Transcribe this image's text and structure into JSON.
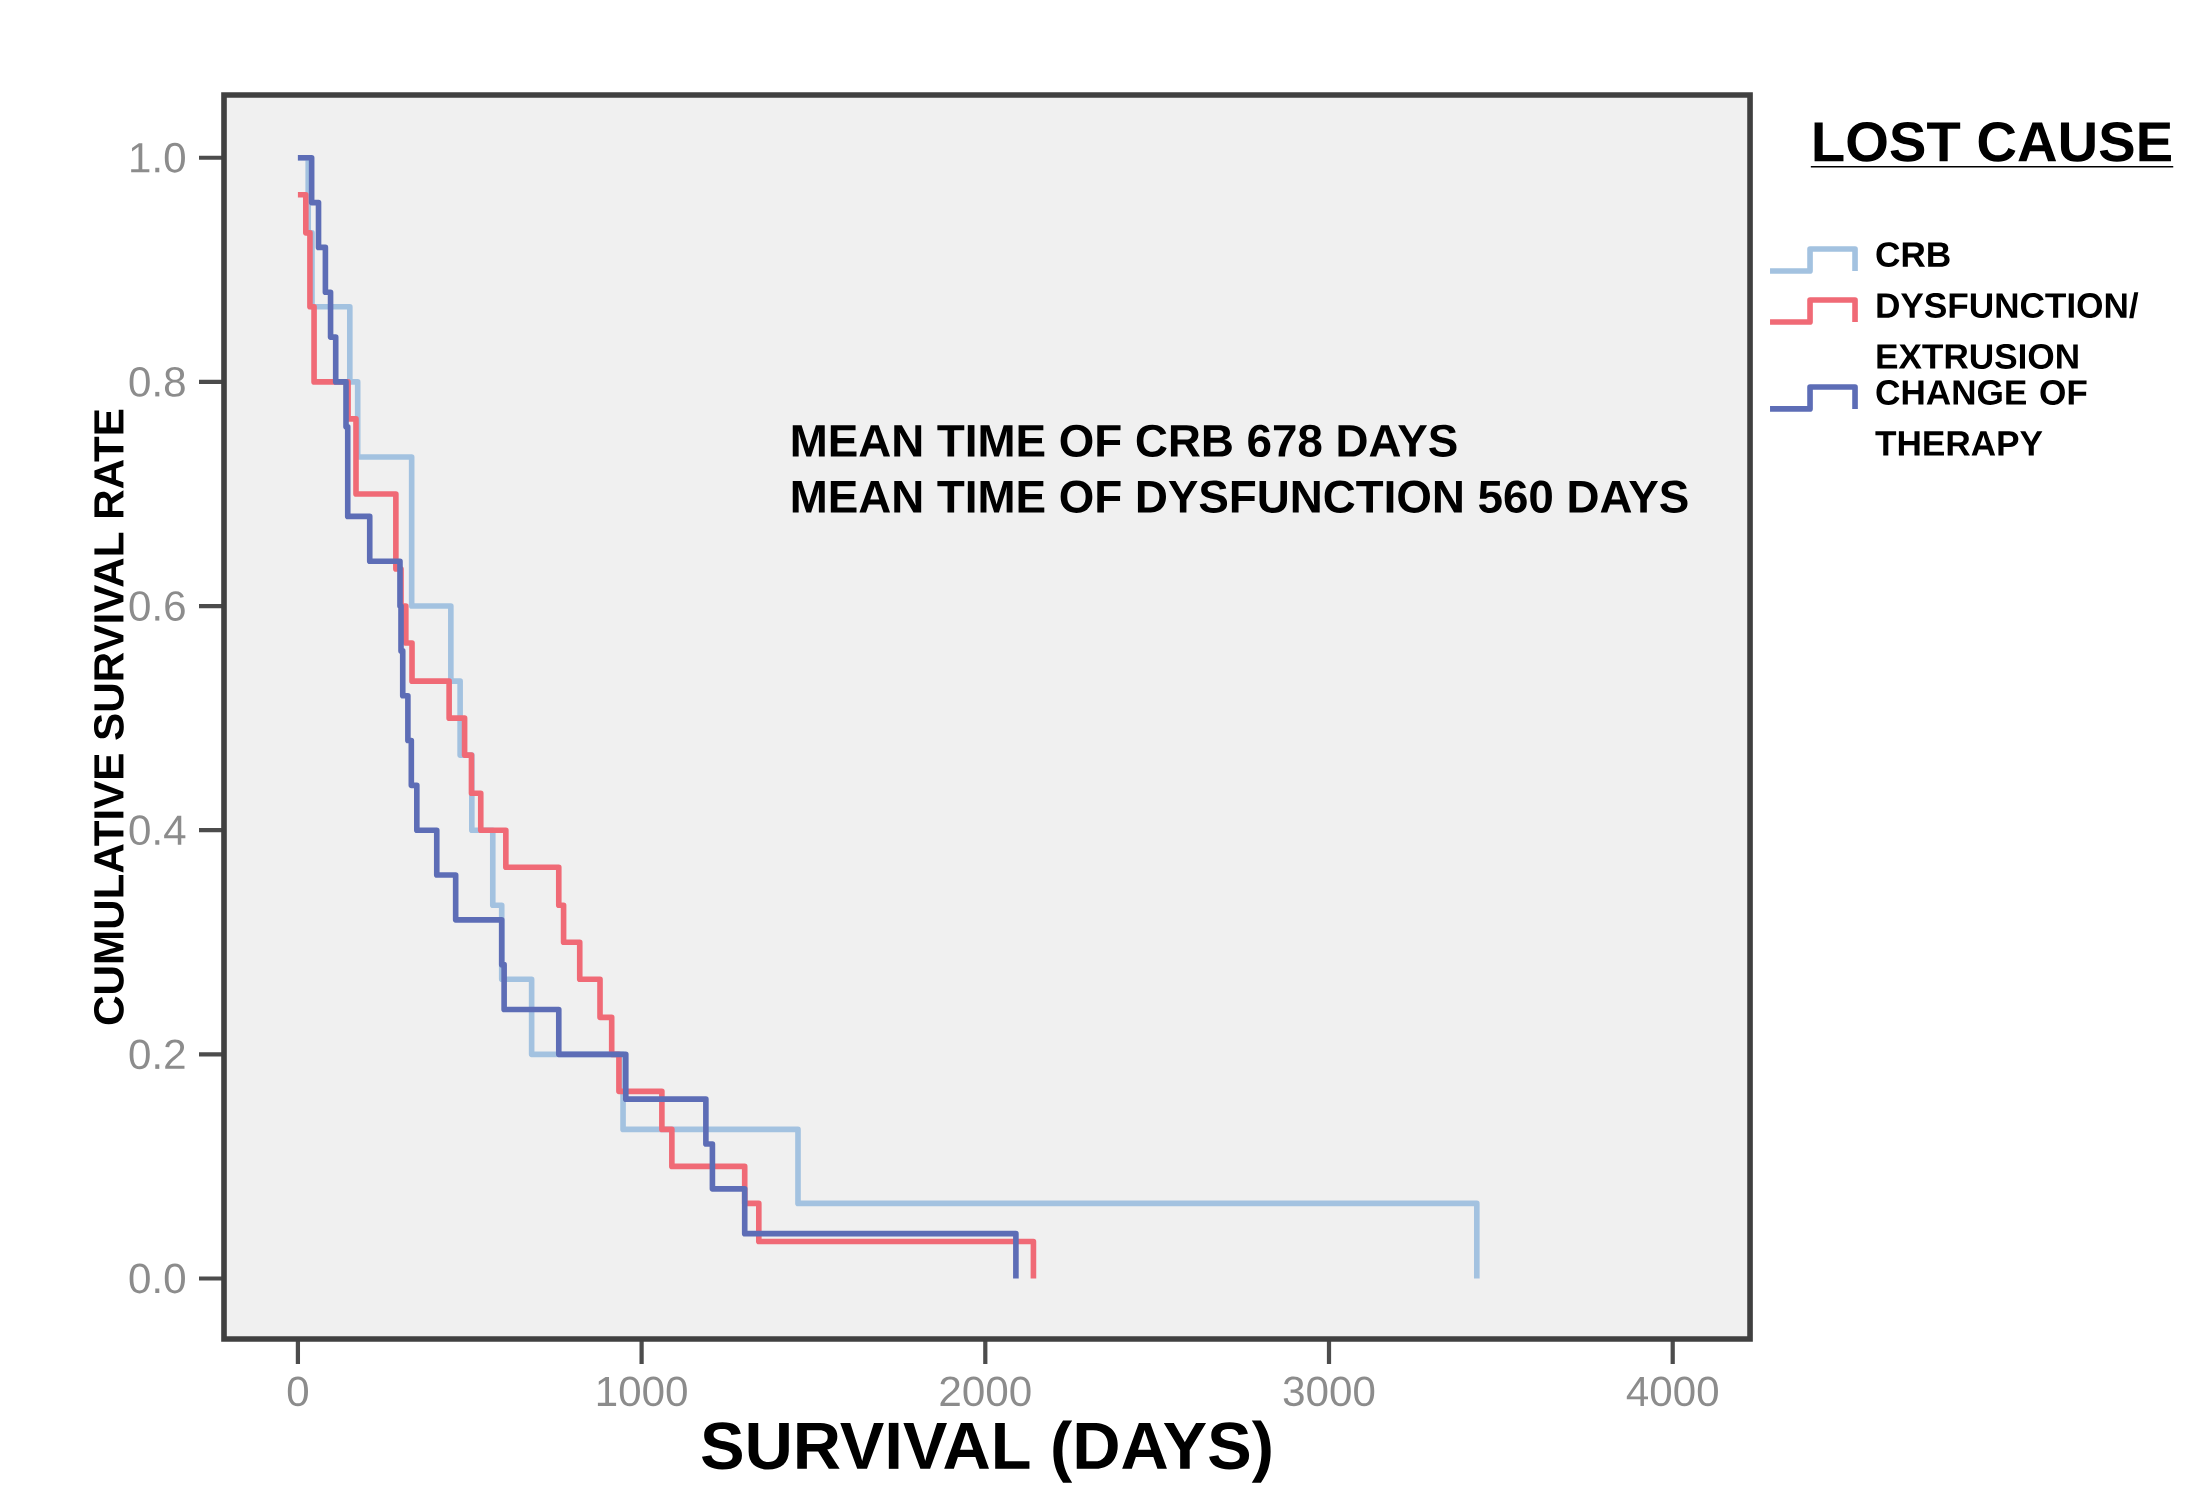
{
  "chart_data": {
    "type": "step",
    "xlabel": "SURVIVAL (DAYS)",
    "ylabel": "CUMULATIVE SURVIVAL RATE",
    "legend_title": "LOST CAUSE",
    "legend": "right",
    "xlim": [
      -215,
      4225
    ],
    "ylim": [
      -0.054,
      1.056
    ],
    "xticks": [
      0,
      1000,
      2000,
      3000,
      4000
    ],
    "yticks": [
      {
        "value": 0,
        "label": "0.0"
      },
      {
        "value": 0.2,
        "label": "0.2"
      },
      {
        "value": 0.4,
        "label": "0.4"
      },
      {
        "value": 0.6,
        "label": "0.6"
      },
      {
        "value": 0.8,
        "label": "0.8"
      },
      {
        "value": 1.0,
        "label": "1.0"
      }
    ],
    "annotations": [
      "MEAN TIME OF CRB 678 DAYS",
      "MEAN TIME OF DYSFUNCTION 560 DAYS"
    ],
    "series": [
      {
        "name": "CRB",
        "color": "#a3c2e0",
        "x": [
          0,
          30,
          41,
          151,
          174,
          331,
          445,
          472,
          506,
          567,
          593,
          680,
          946,
          1455,
          3430
        ],
        "values": [
          1.0,
          0.933,
          0.867,
          0.8,
          0.733,
          0.6,
          0.533,
          0.467,
          0.4,
          0.333,
          0.267,
          0.2,
          0.133,
          0.067,
          0
        ]
      },
      {
        "name": "DYSFUNCTION/ EXTRUSION",
        "color": "#f06a76",
        "x": [
          0,
          23,
          35,
          47,
          146,
          169,
          285,
          300,
          314,
          332,
          440,
          485,
          505,
          532,
          605,
          759,
          773,
          820,
          879,
          913,
          934,
          1059,
          1088,
          1300,
          1341,
          2140
        ],
        "values": [
          0.967,
          0.933,
          0.867,
          0.8,
          0.767,
          0.7,
          0.633,
          0.6,
          0.567,
          0.533,
          0.5,
          0.467,
          0.433,
          0.4,
          0.367,
          0.333,
          0.3,
          0.267,
          0.233,
          0.2,
          0.167,
          0.133,
          0.1,
          0.067,
          0.033,
          0
        ]
      },
      {
        "name": "CHANGE OF THERAPY",
        "color": "#5d6db6",
        "x": [
          0,
          40,
          60,
          80,
          95,
          110,
          140,
          145,
          209,
          297,
          300,
          305,
          320,
          330,
          346,
          404,
          459,
          593,
          600,
          759,
          954,
          1187,
          1206,
          1300,
          2089
        ],
        "values": [
          1.0,
          0.96,
          0.92,
          0.88,
          0.84,
          0.8,
          0.76,
          0.68,
          0.64,
          0.6,
          0.56,
          0.52,
          0.48,
          0.44,
          0.4,
          0.36,
          0.32,
          0.28,
          0.24,
          0.2,
          0.16,
          0.12,
          0.08,
          0.04,
          0
        ]
      }
    ]
  }
}
